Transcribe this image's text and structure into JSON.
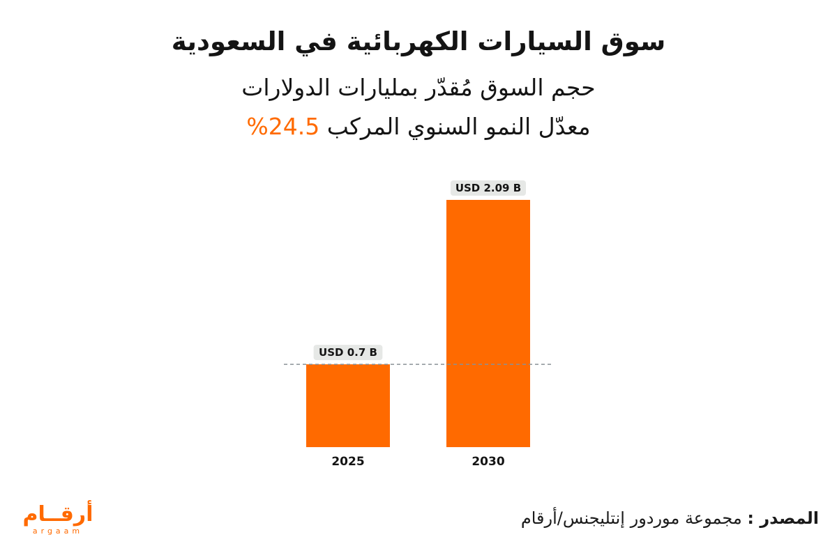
{
  "header": {
    "title": "سوق السيارات الكهربائية في السعودية",
    "subtitle": "حجم السوق مُقدّر بمليارات الدولارات",
    "cagr_label": "معدّل النمو السنوي المركب",
    "cagr_value": "%24.5"
  },
  "chart_data": {
    "type": "bar",
    "title": "سوق السيارات الكهربائية في السعودية",
    "subtitle": "حجم السوق مُقدّر بمليارات الدولارات",
    "categories": [
      "2025",
      "2030"
    ],
    "values": [
      0.7,
      2.09
    ],
    "data_labels": [
      "USD 0.7 B",
      "USD 2.09 B"
    ],
    "ylim": [
      0,
      2.09
    ],
    "reference_line": {
      "value": 0.7,
      "style": "dashed"
    },
    "bar_color": "#ff6a00",
    "label_bg_color": "#e6e8e6",
    "reference_line_color": "#8a9096",
    "grid": false,
    "xlabel": "",
    "ylabel": ""
  },
  "footer": {
    "source_label": "المصدر :",
    "source_text": "مجموعة موردور إنتليجنس/أرقام"
  },
  "logo": {
    "arabic": "أرقــام",
    "latin": "argaam"
  },
  "colors": {
    "accent": "#ff6a00",
    "text": "#141414"
  }
}
